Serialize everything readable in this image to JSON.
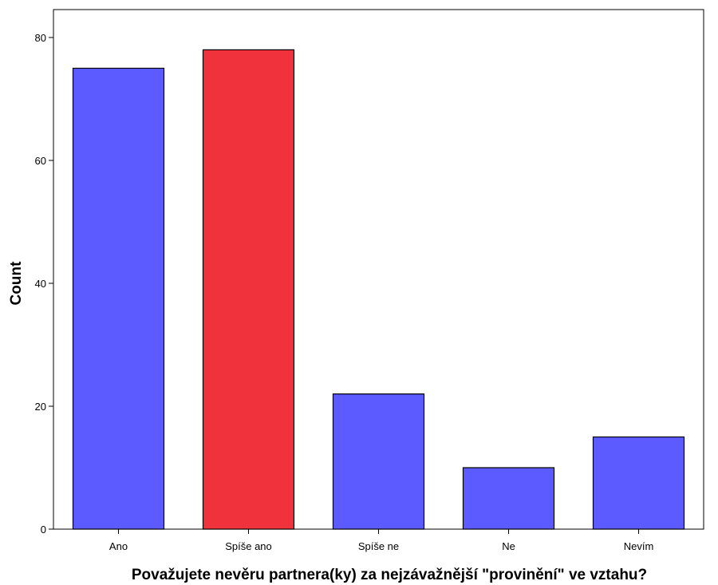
{
  "chart_data": {
    "type": "bar",
    "title": "",
    "xlabel": "Považujete nevěru partnera(ky) za nejzávažnější \"provinění\" ve vztahu?",
    "ylabel": "Count",
    "categories": [
      "Ano",
      "Spíše ano",
      "Spíše ne",
      "Ne",
      "Nevím"
    ],
    "values": [
      75,
      78,
      22,
      10,
      15
    ],
    "bar_colors": [
      "#5b5bff",
      "#f0323c",
      "#5b5bff",
      "#5b5bff",
      "#5b5bff"
    ],
    "ylim": [
      0,
      80
    ],
    "yticks": [
      0,
      20,
      40,
      60,
      80
    ],
    "grid": false,
    "legend": "none"
  },
  "colors": {
    "bar_default": "#5b5bff",
    "bar_highlight": "#f0323c",
    "bar_outline": "#000000",
    "axis": "#000000",
    "background": "#ffffff"
  }
}
